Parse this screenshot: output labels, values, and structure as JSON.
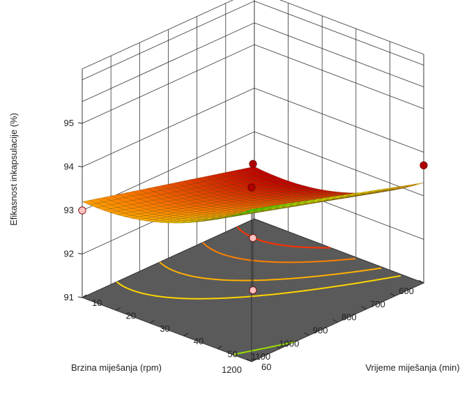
{
  "chart_data": {
    "type": "surface3d",
    "title": "",
    "zlabel": "Efikasnost inkapsulacije (%)",
    "xlabel": "Vrijeme miješanja (min)",
    "ylabel": "Brzina miješanja (rpm)",
    "xlim": [
      10,
      60
    ],
    "ylim": [
      600,
      1200
    ],
    "zlim": [
      91,
      95
    ],
    "x_ticks": [
      "10",
      "20",
      "30",
      "40",
      "50",
      "60"
    ],
    "y_ticks": [
      "600",
      "700",
      "800",
      "900",
      "1000",
      "1100",
      "1200"
    ],
    "z_ticks": [
      "91",
      "92",
      "93",
      "94",
      "95"
    ],
    "floor_color": "#5a5a5a",
    "surface_colors": [
      "#c00000",
      "#ff8000",
      "#ffff00",
      "#00e000"
    ],
    "surface_corners": {
      "x10_y600": 92.2,
      "x60_y600": 93.3,
      "x10_y1200": 93.2,
      "x60_y1200": 94.5
    },
    "design_points": [
      {
        "x": 10,
        "y": 1200,
        "z": 93.0,
        "above_surface": false
      },
      {
        "x": 35,
        "y": 900,
        "z": 93.9,
        "above_surface": true
      },
      {
        "x": 35,
        "y": 900,
        "z": 92.2,
        "above_surface": false
      },
      {
        "x": 60,
        "y": 1200,
        "z": 95.0,
        "above_surface": true
      },
      {
        "x": 60,
        "y": 600,
        "z": 93.7,
        "above_surface": true
      }
    ],
    "contours": [
      {
        "level": 93.0,
        "color": "#ffd500"
      },
      {
        "level": 92.75,
        "color": "#ffb000"
      },
      {
        "level": 92.5,
        "color": "#ff8000"
      },
      {
        "level": 92.3,
        "color": "#ff3000"
      },
      {
        "level": 94.2,
        "color": "#9be000"
      }
    ]
  }
}
